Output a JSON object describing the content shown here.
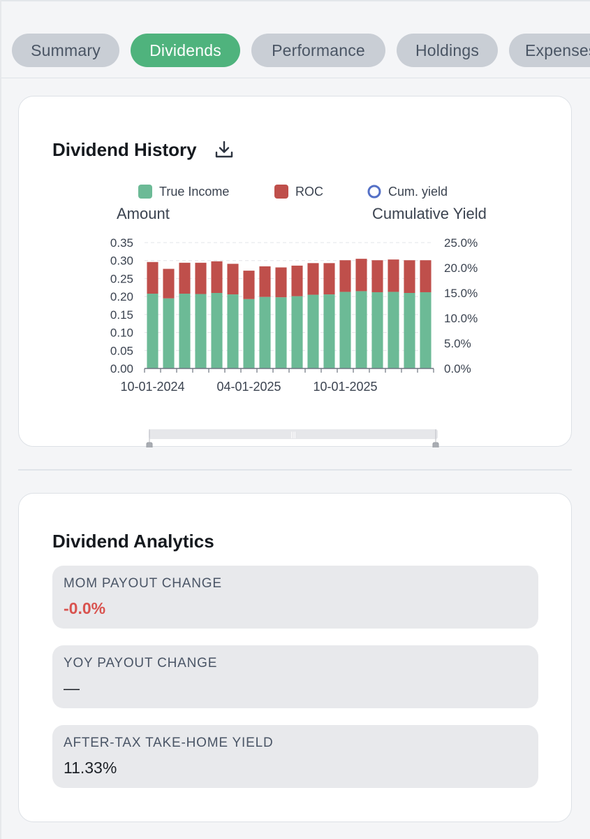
{
  "tabs": [
    {
      "label": "Summary",
      "active": false
    },
    {
      "label": "Dividends",
      "active": true
    },
    {
      "label": "Performance",
      "active": false
    },
    {
      "label": "Holdings",
      "active": false
    },
    {
      "label": "Expenses",
      "active": false
    }
  ],
  "dividend_history": {
    "title": "Dividend History",
    "download_icon": "download-icon"
  },
  "chart_data": {
    "type": "bar",
    "stacked": true,
    "legend": [
      "True Income",
      "ROC",
      "Cum. yield"
    ],
    "ylabel_left": "Amount",
    "ylabel_right": "Cumulative Yield",
    "left_ticks": [
      "0.00",
      "0.05",
      "0.10",
      "0.15",
      "0.20",
      "0.25",
      "0.30",
      "0.35"
    ],
    "right_ticks": [
      "0.0%",
      "5.0%",
      "10.0%",
      "15.0%",
      "20.0%",
      "25.0%"
    ],
    "x_tick_labels": [
      "10-01-2024",
      "04-01-2025",
      "10-01-2025"
    ],
    "ylim_left": [
      0,
      0.35
    ],
    "ylim_right": [
      0,
      25
    ],
    "series": [
      {
        "name": "True Income",
        "color": "#6cba96",
        "values": [
          0.208,
          0.195,
          0.208,
          0.207,
          0.21,
          0.206,
          0.193,
          0.199,
          0.198,
          0.201,
          0.205,
          0.206,
          0.213,
          0.215,
          0.212,
          0.213,
          0.21,
          0.212
        ]
      },
      {
        "name": "ROC",
        "color": "#bf4f4b",
        "values": [
          0.088,
          0.082,
          0.086,
          0.087,
          0.088,
          0.085,
          0.079,
          0.085,
          0.083,
          0.085,
          0.088,
          0.087,
          0.088,
          0.09,
          0.089,
          0.09,
          0.091,
          0.089
        ]
      }
    ]
  },
  "analytics": {
    "title": "Dividend Analytics",
    "metrics": [
      {
        "label": "MOM PAYOUT CHANGE",
        "value": "-0.0%"
      },
      {
        "label": "YOY PAYOUT CHANGE",
        "value": "—"
      },
      {
        "label": "AFTER-TAX TAKE-HOME YIELD",
        "value": "11.33%"
      }
    ]
  },
  "colors": {
    "accent": "#4fb37d",
    "true_income": "#6cba96",
    "roc": "#bf4f4b",
    "cum_yield": "#5470c6",
    "negative": "#d9534f"
  }
}
